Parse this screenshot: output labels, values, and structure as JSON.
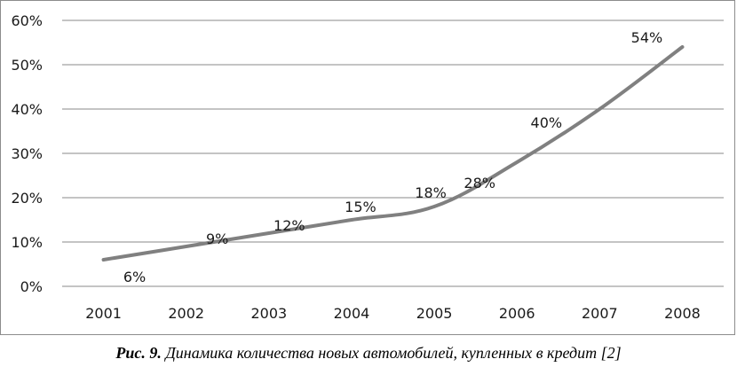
{
  "chart_data": {
    "type": "line",
    "categories": [
      "2001",
      "2002",
      "2003",
      "2004",
      "2005",
      "2006",
      "2007",
      "2008"
    ],
    "series": [
      {
        "values": [
          6,
          9,
          12,
          15,
          18,
          28,
          40,
          54
        ]
      }
    ],
    "data_labels": [
      "6%",
      "9%",
      "12%",
      "15%",
      "18%",
      "28%",
      "40%",
      "54%"
    ],
    "y_ticks": [
      "0%",
      "10%",
      "20%",
      "30%",
      "40%",
      "50%",
      "60%"
    ],
    "ylim": [
      0,
      60
    ],
    "grid": true,
    "line_color": "#808080",
    "xlabel": "",
    "ylabel": ""
  },
  "caption": {
    "prefix": "Рис. 9.",
    "text": " Динамика количества новых автомобилей, купленных в кредит [2]"
  }
}
